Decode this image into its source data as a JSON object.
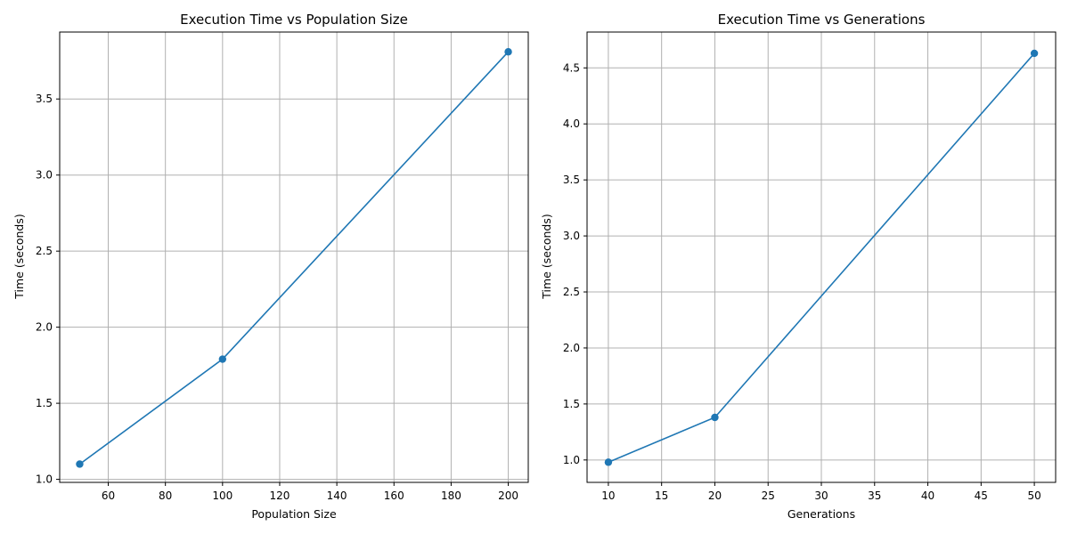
{
  "chart_data": [
    {
      "type": "line",
      "title": "Execution Time vs Population Size",
      "xlabel": "Population Size",
      "ylabel": "Time (seconds)",
      "x": [
        50,
        100,
        200
      ],
      "series": [
        {
          "values": [
            1.1,
            1.79,
            3.81
          ],
          "color": "#1f77b4",
          "marker": "circle"
        }
      ],
      "xlim": [
        43,
        207
      ],
      "ylim": [
        0.98,
        3.94
      ],
      "xticks": [
        60,
        80,
        100,
        120,
        140,
        160,
        180,
        200
      ],
      "yticks": [
        1.0,
        1.5,
        2.0,
        2.5,
        3.0,
        3.5
      ],
      "ytick_format": 1,
      "grid": true
    },
    {
      "type": "line",
      "title": "Execution Time vs Generations",
      "xlabel": "Generations",
      "ylabel": "Time (seconds)",
      "x": [
        10,
        20,
        50
      ],
      "series": [
        {
          "values": [
            0.98,
            1.38,
            4.63
          ],
          "color": "#1f77b4",
          "marker": "circle"
        }
      ],
      "xlim": [
        8,
        52
      ],
      "ylim": [
        0.8,
        4.82
      ],
      "xticks": [
        10,
        15,
        20,
        25,
        30,
        35,
        40,
        45,
        50
      ],
      "yticks": [
        1.0,
        1.5,
        2.0,
        2.5,
        3.0,
        3.5,
        4.0,
        4.5
      ],
      "ytick_format": 1,
      "grid": true
    }
  ]
}
